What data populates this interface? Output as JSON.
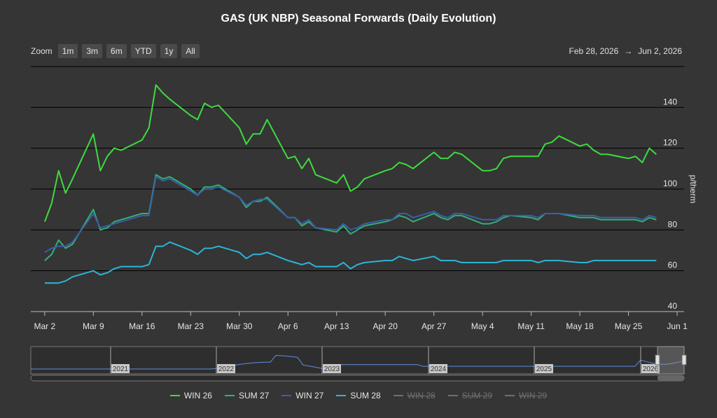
{
  "title": "GAS (UK NBP) Seasonal Forwards (Daily Evolution)",
  "zoom": {
    "label": "Zoom",
    "buttons": [
      "1m",
      "3m",
      "6m",
      "YTD",
      "1y",
      "All"
    ]
  },
  "range": {
    "from": "Feb 28, 2026",
    "arrow": "→",
    "to": "Jun 2, 2026"
  },
  "navigator": {
    "year_labels": [
      "2021",
      "2022",
      "2023",
      "2024",
      "2025",
      "2026"
    ]
  },
  "legend": [
    {
      "name": "WIN 26",
      "color": "#3ddc3d",
      "visible": true
    },
    {
      "name": "SUM 27",
      "color": "#33b07a",
      "visible": true
    },
    {
      "name": "WIN 27",
      "color": "#3a5fa8",
      "visible": true
    },
    {
      "name": "SUM 28",
      "color": "#2bb5d8",
      "visible": true
    },
    {
      "name": "WIN 28",
      "color": "#707070",
      "visible": false
    },
    {
      "name": "SUM 29",
      "color": "#707070",
      "visible": false
    },
    {
      "name": "WIN 29",
      "color": "#707070",
      "visible": false
    }
  ],
  "chart_data": {
    "type": "line",
    "title": "GAS (UK NBP) Seasonal Forwards (Daily Evolution)",
    "ylabel": "p/therm",
    "ylim": [
      40,
      160
    ],
    "yticks": [
      40,
      60,
      80,
      100,
      120,
      140
    ],
    "xlim": [
      "2026-02-28",
      "2026-06-02"
    ],
    "xtick_labels": [
      "Mar 2",
      "Mar 9",
      "Mar 16",
      "Mar 23",
      "Mar 30",
      "Apr 6",
      "Apr 13",
      "Apr 20",
      "Apr 27",
      "May 4",
      "May 11",
      "May 18",
      "May 25",
      "Jun 1"
    ],
    "xtick_dates": [
      "2026-03-02",
      "2026-03-09",
      "2026-03-16",
      "2026-03-23",
      "2026-03-30",
      "2026-04-06",
      "2026-04-13",
      "2026-04-20",
      "2026-04-27",
      "2026-05-04",
      "2026-05-11",
      "2026-05-18",
      "2026-05-25",
      "2026-06-01"
    ],
    "grid": true,
    "legend_position": "bottom",
    "x": [
      "2026-03-02",
      "2026-03-03",
      "2026-03-04",
      "2026-03-05",
      "2026-03-06",
      "2026-03-09",
      "2026-03-10",
      "2026-03-11",
      "2026-03-12",
      "2026-03-13",
      "2026-03-16",
      "2026-03-17",
      "2026-03-18",
      "2026-03-19",
      "2026-03-20",
      "2026-03-23",
      "2026-03-24",
      "2026-03-25",
      "2026-03-26",
      "2026-03-27",
      "2026-03-30",
      "2026-03-31",
      "2026-04-01",
      "2026-04-02",
      "2026-04-03",
      "2026-04-06",
      "2026-04-07",
      "2026-04-08",
      "2026-04-09",
      "2026-04-10",
      "2026-04-13",
      "2026-04-14",
      "2026-04-15",
      "2026-04-16",
      "2026-04-17",
      "2026-04-20",
      "2026-04-21",
      "2026-04-22",
      "2026-04-23",
      "2026-04-24",
      "2026-04-27",
      "2026-04-28",
      "2026-04-29",
      "2026-04-30",
      "2026-05-01",
      "2026-05-04",
      "2026-05-05",
      "2026-05-06",
      "2026-05-07",
      "2026-05-08",
      "2026-05-11",
      "2026-05-12",
      "2026-05-13",
      "2026-05-14",
      "2026-05-15",
      "2026-05-18",
      "2026-05-19",
      "2026-05-20",
      "2026-05-21",
      "2026-05-22",
      "2026-05-25",
      "2026-05-26",
      "2026-05-27",
      "2026-05-28",
      "2026-05-29",
      "2026-06-01",
      "2026-06-02"
    ],
    "series": [
      {
        "name": "WIN 26",
        "color": "#3ddc3d",
        "values": [
          84,
          93,
          109,
          98,
          105,
          127,
          109,
          116,
          120,
          119,
          124,
          130,
          151,
          147,
          144,
          136,
          134,
          142,
          140,
          141,
          130,
          122,
          127,
          127,
          134,
          115,
          116,
          110,
          115,
          107,
          103,
          107,
          99,
          101,
          105,
          109,
          110,
          113,
          112,
          110,
          118,
          115,
          115,
          118,
          117,
          109,
          109,
          110,
          115,
          116,
          116,
          116,
          122,
          123,
          126,
          121,
          122,
          119,
          117,
          117,
          115,
          116,
          113,
          120,
          117,
          null,
          null
        ]
      },
      {
        "name": "SUM 27",
        "color": "#33b07a",
        "values": [
          65,
          68,
          75,
          71,
          73,
          90,
          80,
          81,
          84,
          85,
          88,
          88,
          107,
          105,
          106,
          100,
          97,
          101,
          101,
          102,
          96,
          91,
          94,
          94,
          96,
          86,
          86,
          82,
          84,
          81,
          79,
          82,
          78,
          80,
          82,
          84,
          85,
          87,
          86,
          84,
          88,
          86,
          85,
          87,
          87,
          83,
          83,
          84,
          86,
          87,
          86,
          85,
          88,
          88,
          88,
          86,
          86,
          86,
          85,
          85,
          85,
          85,
          84,
          86,
          85,
          null,
          null
        ]
      },
      {
        "name": "WIN 27",
        "color": "#3a5fa8",
        "values": [
          69,
          71,
          72,
          72,
          74,
          88,
          81,
          82,
          83,
          84,
          87,
          87,
          106,
          104,
          105,
          99,
          97,
          100,
          100,
          101,
          96,
          92,
          94,
          95,
          95,
          86,
          86,
          83,
          85,
          81,
          80,
          83,
          80,
          81,
          83,
          85,
          85,
          88,
          88,
          86,
          89,
          87,
          86,
          88,
          88,
          85,
          85,
          85,
          87,
          87,
          87,
          86,
          88,
          88,
          88,
          87,
          87,
          87,
          86,
          86,
          86,
          86,
          85,
          87,
          86,
          null,
          null
        ]
      },
      {
        "name": "SUM 28",
        "color": "#2bb5d8",
        "values": [
          54,
          54,
          54,
          55,
          57,
          60,
          58,
          59,
          61,
          62,
          62,
          63,
          72,
          72,
          74,
          70,
          68,
          71,
          71,
          72,
          69,
          66,
          68,
          68,
          69,
          65,
          64,
          63,
          64,
          62,
          62,
          64,
          61,
          63,
          64,
          65,
          65,
          67,
          66,
          65,
          67,
          65,
          65,
          65,
          64,
          64,
          64,
          64,
          65,
          65,
          65,
          64,
          65,
          65,
          65,
          64,
          64,
          65,
          65,
          65,
          65,
          65,
          65,
          65,
          65,
          null,
          null
        ]
      }
    ]
  }
}
